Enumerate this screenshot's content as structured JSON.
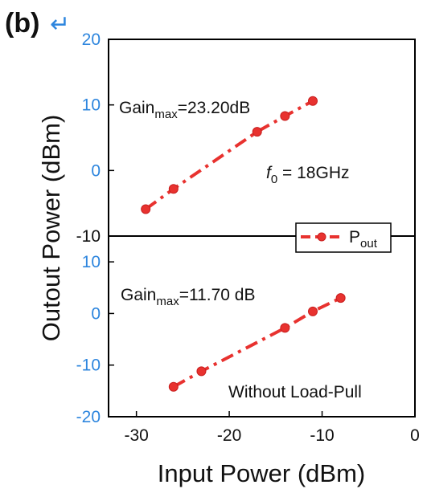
{
  "panel_label": "(b)",
  "panel_mark": "↵",
  "colors": {
    "series": "#e8322f",
    "marker_edge": "#c81e1e",
    "blue_ticks": "#2e86de",
    "axis": "#000000"
  },
  "chart_data": [
    {
      "type": "line",
      "panel": "top",
      "ylabel": "Outout Power (dBm)",
      "ylim": [
        -10,
        20
      ],
      "yticks": [
        "20",
        "10",
        "0",
        "-10"
      ],
      "grid": false,
      "series": [
        {
          "name": "P_out",
          "x": [
            -29,
            -26,
            -17,
            -14,
            -11
          ],
          "y": [
            -5.9,
            -2.8,
            5.9,
            8.3,
            10.6
          ]
        }
      ],
      "annotations": {
        "gain": {
          "prefix": "Gain",
          "sub": "max",
          "value": "=23.20dB"
        },
        "freq": {
          "italic": "f",
          "sub": "0",
          "value": " = 18GHz"
        }
      },
      "legend": {
        "position": "bottom-right",
        "label": "P",
        "sub": "out"
      }
    },
    {
      "type": "line",
      "panel": "bottom",
      "xlabel": "Input Power (dBm)",
      "xlim": [
        -33,
        0
      ],
      "xticks": [
        "-30",
        "-20",
        "-10",
        "0"
      ],
      "ylim": [
        -20,
        15
      ],
      "yticks": [
        "10",
        "0",
        "-10",
        "-20"
      ],
      "grid": false,
      "series": [
        {
          "name": "P_out",
          "x": [
            -26,
            -23,
            -14,
            -11,
            -8
          ],
          "y": [
            -14.2,
            -11.2,
            -2.8,
            0.4,
            3.0
          ]
        }
      ],
      "annotations": {
        "gain": {
          "prefix": "Gain",
          "sub": "max",
          "value": "=11.70 dB"
        },
        "note": "Without Load-Pull"
      }
    }
  ]
}
